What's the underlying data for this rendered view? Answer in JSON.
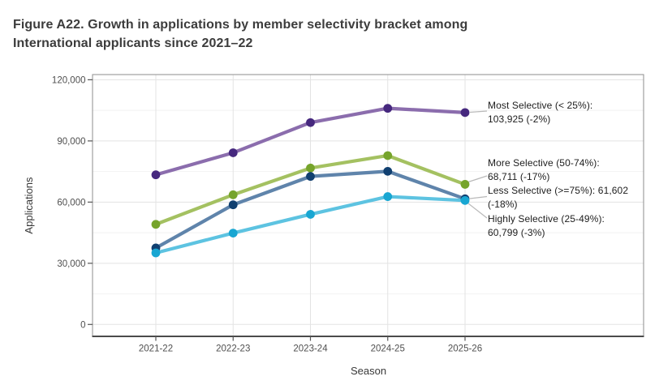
{
  "figure": {
    "title_line1": "Figure A22. Growth in applications by member selectivity bracket among",
    "title_line2": "International applicants since 2021–22"
  },
  "chart_data": {
    "type": "line",
    "title": "Figure A22. Growth in applications by member selectivity bracket among International applicants since 2021–22",
    "xlabel": "Season",
    "ylabel": "Applications",
    "categories": [
      "2021-22",
      "2022-23",
      "2023-24",
      "2024-25",
      "2025-26"
    ],
    "ylim": [
      0,
      120000
    ],
    "yticks": {
      "values": [
        0,
        30000,
        60000,
        90000,
        120000
      ],
      "labels": [
        "0",
        "30,000",
        "60,000",
        "90,000",
        "120,000"
      ]
    },
    "yticks_minor": [
      15000,
      45000,
      75000,
      105000
    ],
    "grid": {
      "horizontal_major": true,
      "horizontal_minor": true,
      "vertical_major": true
    },
    "legend_position": "right-end-annotations",
    "series": [
      {
        "id": "most-selective",
        "name": "Most Selective (< 25%)",
        "line_color": "#8b6dad",
        "point_color": "#46287e",
        "values": [
          73400,
          84200,
          99000,
          106000,
          103925
        ]
      },
      {
        "id": "more-selective",
        "name": "More Selective (50-74%)",
        "line_color": "#a4c161",
        "point_color": "#76a42b",
        "values": [
          49100,
          63600,
          76700,
          82800,
          68711
        ]
      },
      {
        "id": "less-selective",
        "name": "Less Selective (>=75%)",
        "line_color": "#5f84ab",
        "point_color": "#103f70",
        "values": [
          37500,
          58700,
          72600,
          75100,
          61602
        ]
      },
      {
        "id": "highly-selective",
        "name": "Highly Selective (25-49%)",
        "line_color": "#5dc3e1",
        "point_color": "#18a6d2",
        "values": [
          35100,
          44800,
          54000,
          62700,
          60799
        ]
      }
    ],
    "annotations": [
      {
        "series": "most-selective",
        "lines": [
          "Most Selective (< 25%):",
          "103,925 (-2%)"
        ]
      },
      {
        "series": "more-selective",
        "lines": [
          "More Selective (50-74%):",
          "68,711 (-17%)"
        ]
      },
      {
        "series": "less-selective",
        "lines": [
          "Less Selective (>=75%): 61,602",
          "(-18%)"
        ]
      },
      {
        "series": "highly-selective",
        "lines": [
          "Highly Selective (25-49%):",
          "60,799 (-3%)"
        ]
      }
    ]
  },
  "colors": {
    "grid_major": "#e3e3e3",
    "grid_minor": "#f2f2f2",
    "panel_border": "#8d8d8d",
    "axis_line": "#4b4b4b",
    "tick": "#555555",
    "tick_label": "#4f4f4f",
    "axis_title": "#383838",
    "leader_line": "#b9b9b9"
  }
}
